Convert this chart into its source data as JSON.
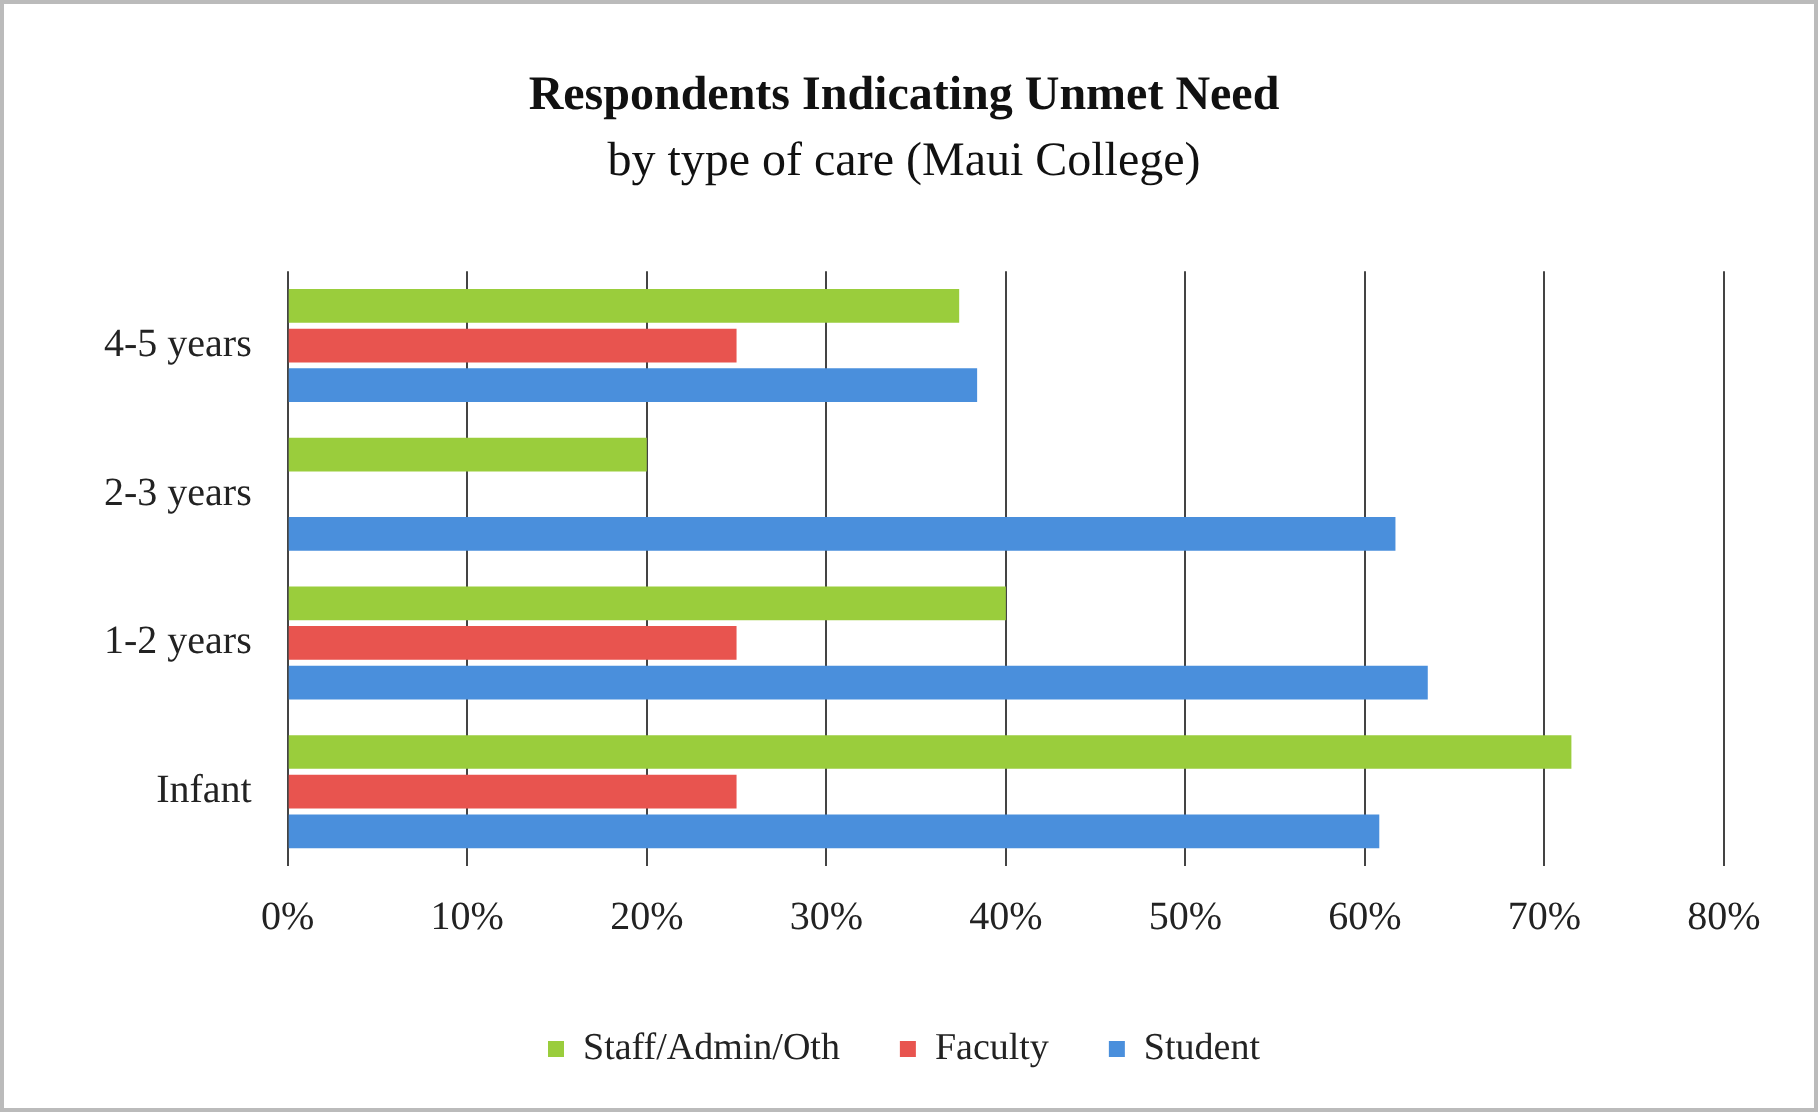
{
  "chart_data": {
    "type": "bar",
    "orientation": "horizontal",
    "title": "Respondents Indicating Unmet Need",
    "subtitle": "by type of care (Maui College)",
    "categories": [
      "4-5 years",
      "2-3 years",
      "1-2 years",
      "Infant"
    ],
    "series": [
      {
        "name": "Staff/Admin/Oth",
        "color": "#9acd3c",
        "values": [
          37.4,
          20,
          40,
          71.5
        ]
      },
      {
        "name": "Faculty",
        "color": "#e8544f",
        "values": [
          25,
          null,
          25,
          25
        ]
      },
      {
        "name": "Student",
        "color": "#4a8fdc",
        "values": [
          38.4,
          61.7,
          63.5,
          60.8
        ]
      }
    ],
    "xlim": [
      0,
      80
    ],
    "xticks": [
      {
        "value": 0,
        "label": "0%"
      },
      {
        "value": 10,
        "label": "10%"
      },
      {
        "value": 20,
        "label": "20%"
      },
      {
        "value": 30,
        "label": "30%"
      },
      {
        "value": 40,
        "label": "40%"
      },
      {
        "value": 50,
        "label": "50%"
      },
      {
        "value": 60,
        "label": "60%"
      },
      {
        "value": 70,
        "label": "70%"
      },
      {
        "value": 80,
        "label": "80%"
      }
    ],
    "grid": "x",
    "legend": "bottom"
  }
}
